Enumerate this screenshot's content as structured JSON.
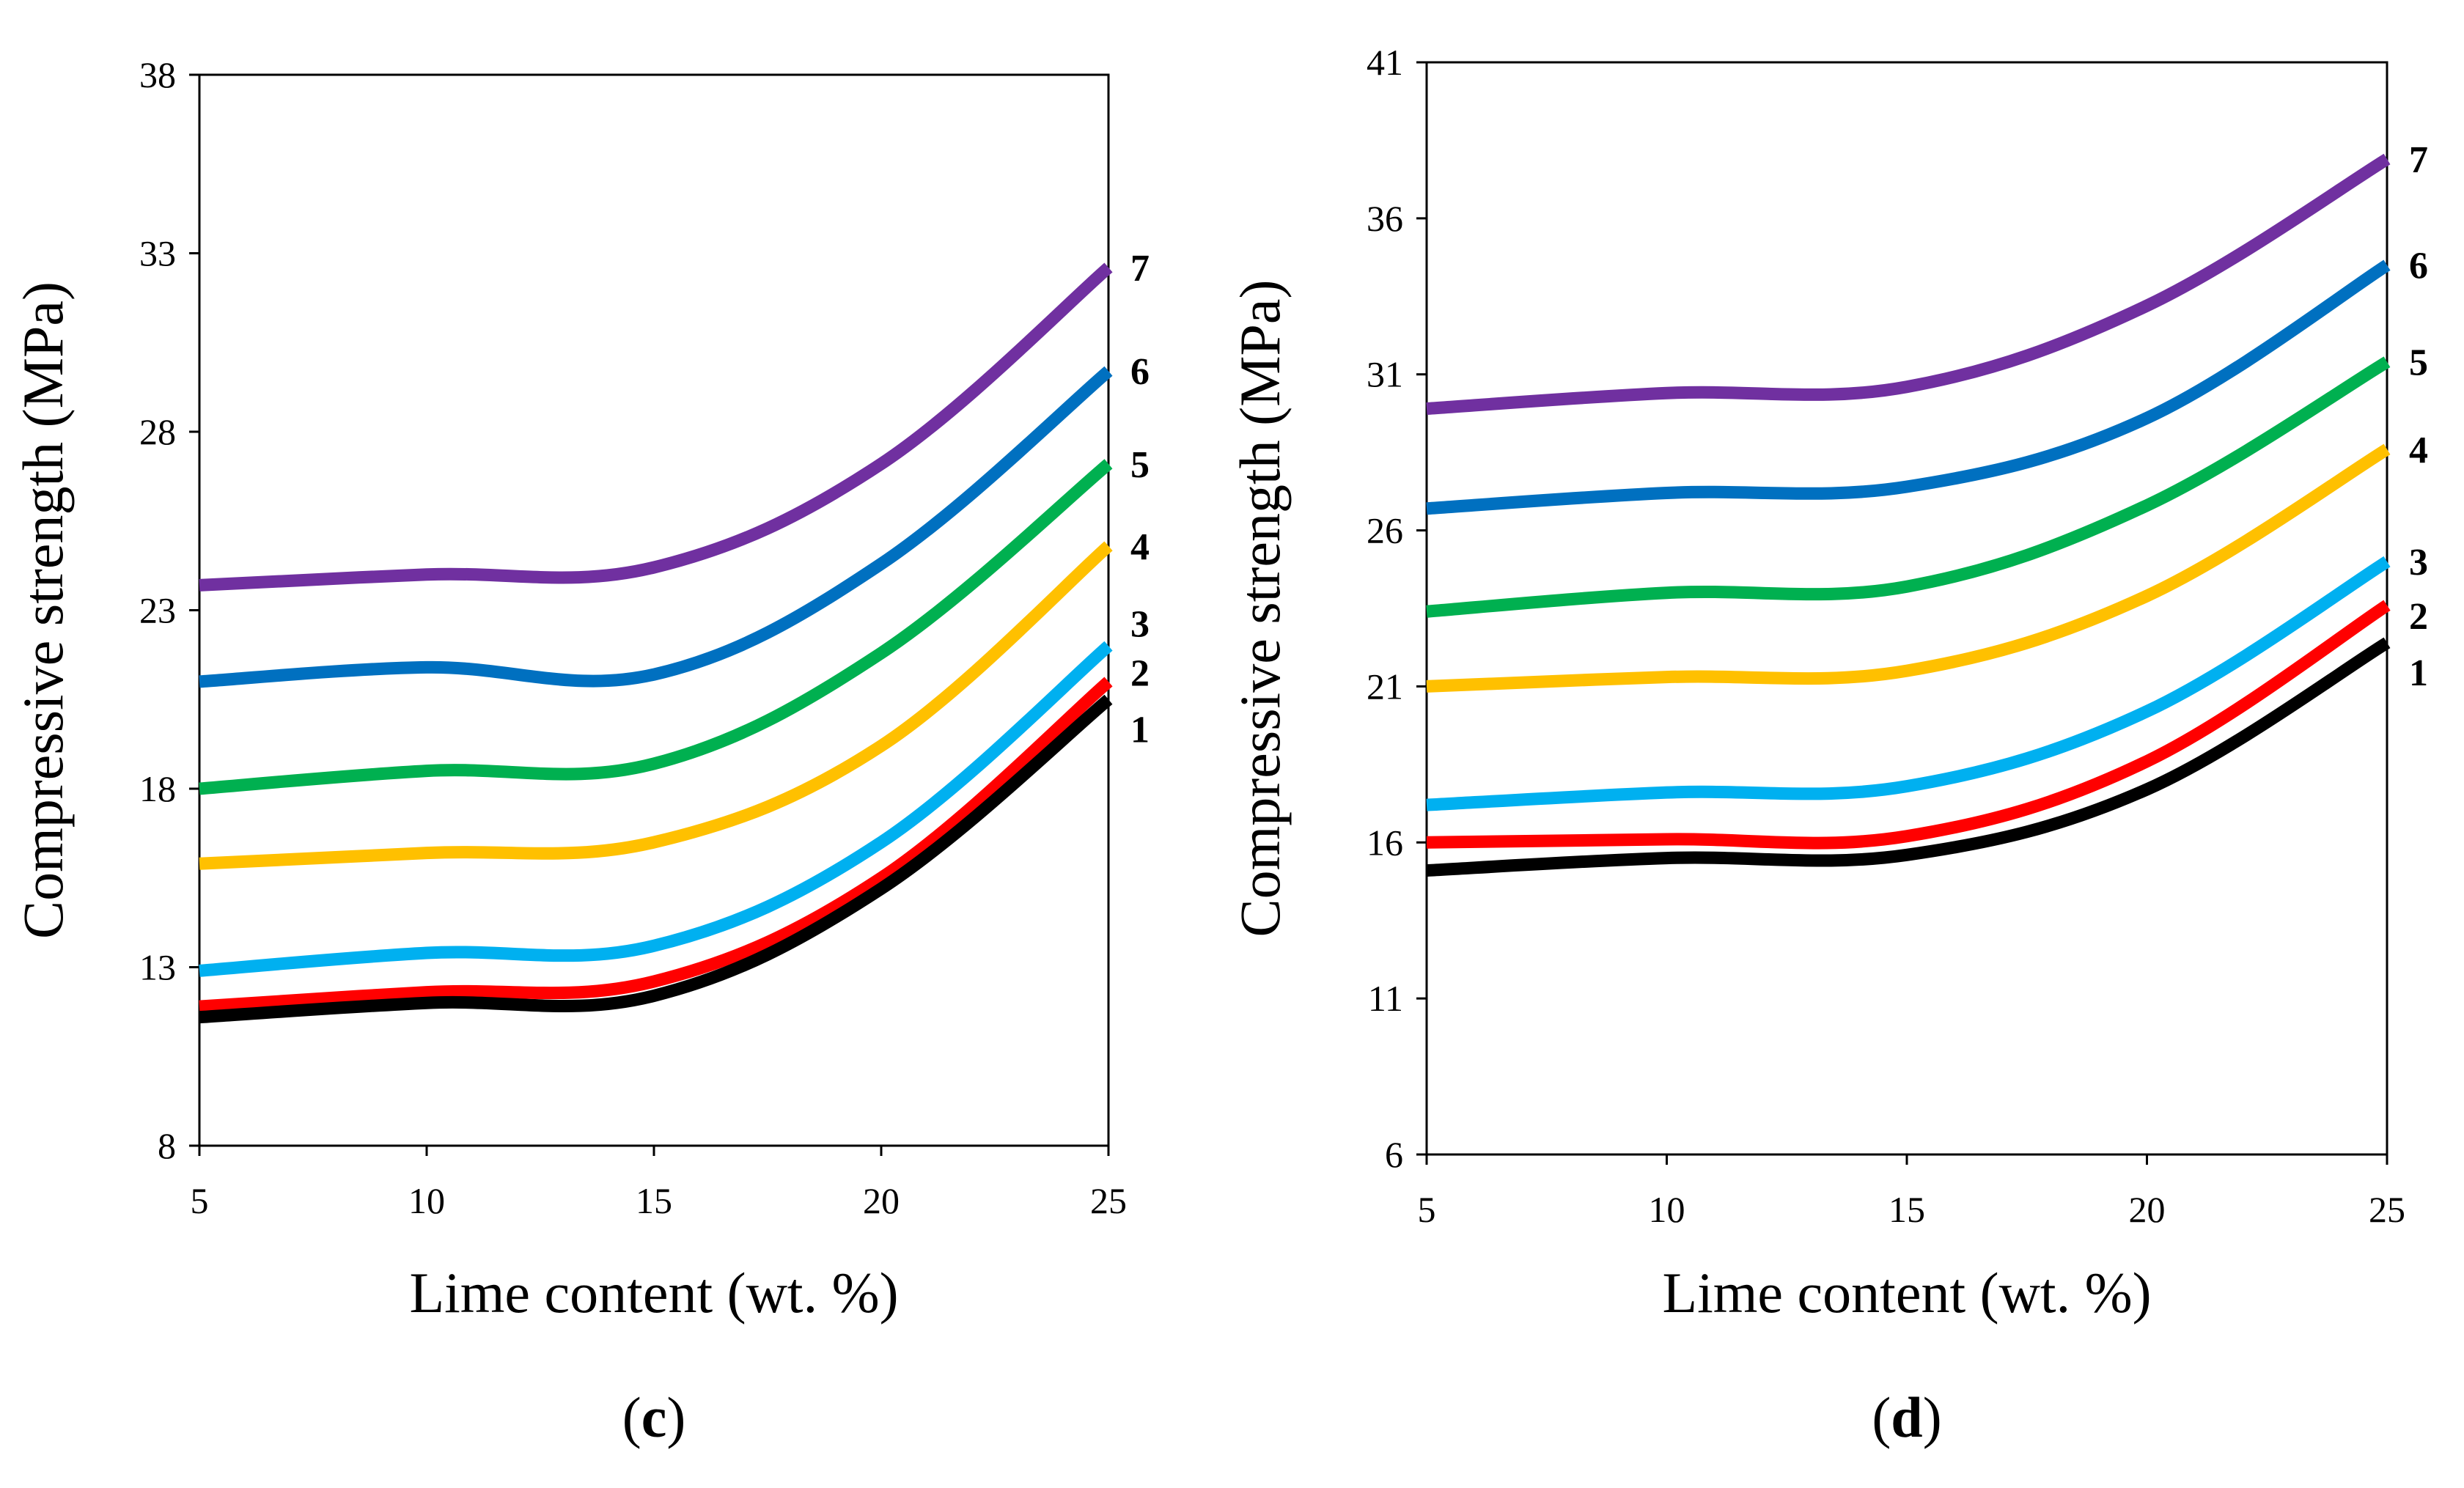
{
  "chart_data": [
    {
      "type": "line",
      "panel": "c",
      "xlabel": "Lime content (wt. %)",
      "ylabel": "Compressive strength (MPa)",
      "xlim": [
        5,
        25
      ],
      "ylim": [
        8,
        38
      ],
      "xticks": [
        5,
        10,
        15,
        20,
        25
      ],
      "yticks": [
        8,
        13,
        18,
        23,
        28,
        33,
        38
      ],
      "x": [
        5,
        10,
        15,
        20,
        25
      ],
      "series": [
        {
          "name": "1",
          "color": "#000000",
          "values": [
            11.6,
            12.0,
            12.2,
            15.2,
            20.5
          ]
        },
        {
          "name": "2",
          "color": "#ff0000",
          "values": [
            11.9,
            12.3,
            12.6,
            15.5,
            21.0
          ]
        },
        {
          "name": "3",
          "color": "#00b0f0",
          "values": [
            12.9,
            13.4,
            13.6,
            16.5,
            22.0
          ]
        },
        {
          "name": "4",
          "color": "#ffc000",
          "values": [
            15.9,
            16.2,
            16.5,
            19.2,
            24.8
          ]
        },
        {
          "name": "5",
          "color": "#00b050",
          "values": [
            18.0,
            18.5,
            18.7,
            21.8,
            27.1
          ]
        },
        {
          "name": "6",
          "color": "#0070c0",
          "values": [
            21.0,
            21.4,
            21.2,
            24.3,
            29.7
          ]
        },
        {
          "name": "7",
          "color": "#7030a0",
          "values": [
            23.7,
            24.0,
            24.2,
            27.1,
            32.6
          ]
        }
      ]
    },
    {
      "type": "line",
      "panel": "d",
      "xlabel": "Lime content (wt. %)",
      "ylabel": "Compressive strength (MPa)",
      "xlim": [
        5,
        25
      ],
      "ylim": [
        6,
        41
      ],
      "xticks": [
        5,
        10,
        15,
        20,
        25
      ],
      "yticks": [
        6,
        11,
        16,
        21,
        26,
        31,
        36,
        41
      ],
      "x": [
        5,
        10,
        15,
        20,
        25
      ],
      "series": [
        {
          "name": "1",
          "color": "#000000",
          "values": [
            15.1,
            15.5,
            15.6,
            17.7,
            22.4
          ]
        },
        {
          "name": "2",
          "color": "#ff0000",
          "values": [
            16.0,
            16.1,
            16.2,
            18.6,
            23.6
          ]
        },
        {
          "name": "3",
          "color": "#00b0f0",
          "values": [
            17.2,
            17.6,
            17.8,
            20.2,
            25.0
          ]
        },
        {
          "name": "4",
          "color": "#ffc000",
          "values": [
            21.0,
            21.3,
            21.5,
            23.9,
            28.6
          ]
        },
        {
          "name": "5",
          "color": "#00b050",
          "values": [
            23.4,
            24.0,
            24.2,
            26.8,
            31.4
          ]
        },
        {
          "name": "6",
          "color": "#0070c0",
          "values": [
            26.7,
            27.2,
            27.4,
            29.6,
            34.5
          ]
        },
        {
          "name": "7",
          "color": "#7030a0",
          "values": [
            29.9,
            30.4,
            30.6,
            33.2,
            37.9
          ]
        }
      ]
    }
  ]
}
